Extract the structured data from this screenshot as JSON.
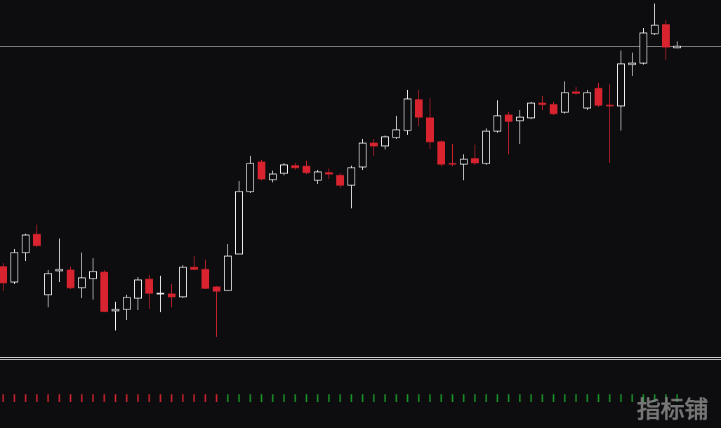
{
  "chart_data": {
    "type": "candlestick",
    "open": [
      130,
      108,
      150,
      176,
      90,
      124,
      125,
      100,
      113,
      122,
      67,
      69,
      85,
      112,
      91,
      91,
      87,
      129,
      126,
      101,
      96,
      148,
      237,
      279,
      254,
      263,
      274,
      273,
      253,
      264,
      260,
      246,
      272,
      306,
      302,
      314,
      324,
      368,
      342,
      308,
      277,
      276,
      284,
      277,
      323,
      346,
      338,
      342,
      363,
      361,
      350,
      379,
      356,
      384,
      360,
      359,
      418,
      420,
      462,
      475,
      442
    ],
    "high": [
      135,
      155,
      177,
      190,
      125,
      170,
      130,
      150,
      142,
      125,
      80,
      90,
      115,
      118,
      117,
      105,
      132,
      145,
      140,
      102,
      162,
      252,
      288,
      282,
      267,
      278,
      278,
      281,
      268,
      270,
      263,
      274,
      312,
      312,
      317,
      345,
      382,
      382,
      370,
      310,
      305,
      290,
      304,
      327,
      367,
      350,
      353,
      365,
      373,
      365,
      394,
      386,
      382,
      392,
      390,
      438,
      435,
      470,
      505,
      482,
      451
    ],
    "low": [
      95,
      105,
      138,
      158,
      72,
      108,
      98,
      85,
      83,
      65,
      39,
      54,
      68,
      70,
      65,
      72,
      85,
      125,
      98,
      30,
      95,
      148,
      235,
      253,
      250,
      260,
      268,
      262,
      248,
      255,
      242,
      213,
      268,
      288,
      297,
      312,
      318,
      330,
      298,
      273,
      273,
      253,
      275,
      275,
      321,
      290,
      305,
      340,
      353,
      346,
      348,
      375,
      353,
      358,
      278,
      324,
      402,
      418,
      460,
      425,
      441
    ],
    "close": [
      107,
      150,
      175,
      160,
      120,
      126,
      100,
      114,
      123,
      66,
      69,
      86,
      111,
      92,
      92,
      87,
      129,
      126,
      99,
      95,
      145,
      237,
      277,
      255,
      262,
      275,
      271,
      264,
      265,
      262,
      246,
      271,
      306,
      302,
      315,
      325,
      369,
      343,
      308,
      276,
      276,
      283,
      278,
      323,
      345,
      337,
      343,
      363,
      361,
      348,
      378,
      377,
      378,
      360,
      359,
      419,
      420,
      463,
      474,
      443,
      444
    ],
    "up_color": "#ffffff",
    "down_color": "#d9232e",
    "ylim": [
      0,
      510
    ],
    "last_price": 444,
    "signals": {
      "values": [
        -1,
        -1,
        -1,
        -1,
        -1,
        -1,
        -1,
        -1,
        -1,
        -1,
        -1,
        -1,
        -1,
        -1,
        -1,
        -1,
        -1,
        -1,
        -1,
        -1,
        1,
        1,
        1,
        1,
        1,
        1,
        1,
        1,
        1,
        1,
        1,
        1,
        1,
        1,
        1,
        1,
        1,
        1,
        1,
        1,
        1,
        1,
        1,
        1,
        1,
        1,
        1,
        1,
        1,
        1,
        1,
        1,
        1,
        1,
        1,
        1,
        1,
        1,
        1,
        1,
        1
      ],
      "up_color": "#1a9a2a",
      "down_color": "#d9232e"
    }
  },
  "watermark": "指标铺"
}
